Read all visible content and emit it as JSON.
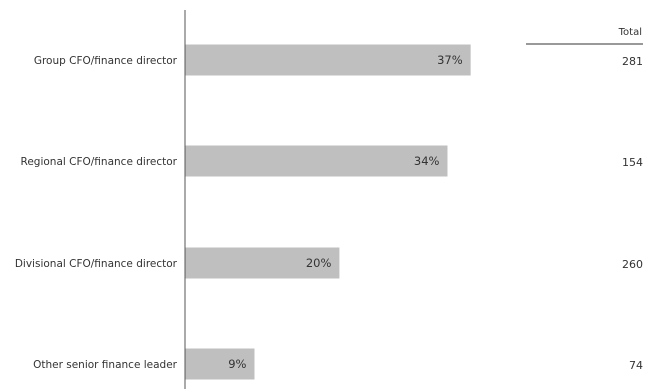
{
  "chart_data": {
    "type": "bar",
    "orientation": "horizontal",
    "categories": [
      "Group CFO/finance director",
      "Regional CFO/finance director",
      "Divisional CFO/finance director",
      "Other senior finance leader"
    ],
    "values": [
      37,
      34,
      20,
      9
    ],
    "value_labels": [
      "37%",
      "34%",
      "20%",
      "9%"
    ],
    "bar_color": "#bfbfbf",
    "xlim": [
      0,
      100
    ],
    "grid": false,
    "legend": "none",
    "totals": {
      "header": "Total",
      "values": [
        "281",
        "154",
        "260",
        "74"
      ]
    }
  }
}
